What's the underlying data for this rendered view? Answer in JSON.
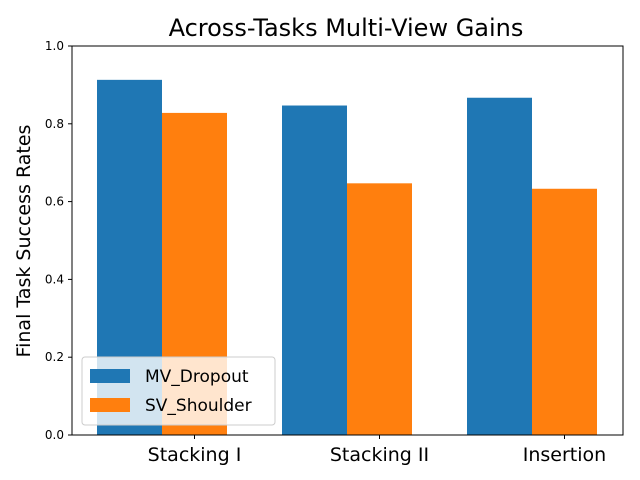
{
  "chart_data": {
    "type": "bar",
    "title": "Across-Tasks Multi-View Gains",
    "xlabel": "",
    "ylabel": "Final Task Success Rates",
    "categories": [
      "Stacking I",
      "Stacking II",
      "Insertion"
    ],
    "series": [
      {
        "name": "MV_Dropout",
        "color": "#1f77b4",
        "values": [
          0.913,
          0.847,
          0.867
        ]
      },
      {
        "name": "SV_Shoulder",
        "color": "#ff7f0e",
        "values": [
          0.828,
          0.647,
          0.633
        ]
      }
    ],
    "ylim": [
      0,
      1.0
    ],
    "yticks": [
      "0.0",
      "0.2",
      "0.4",
      "0.6",
      "0.8",
      "1.0"
    ],
    "grid": false,
    "legend_position": "lower-left"
  }
}
